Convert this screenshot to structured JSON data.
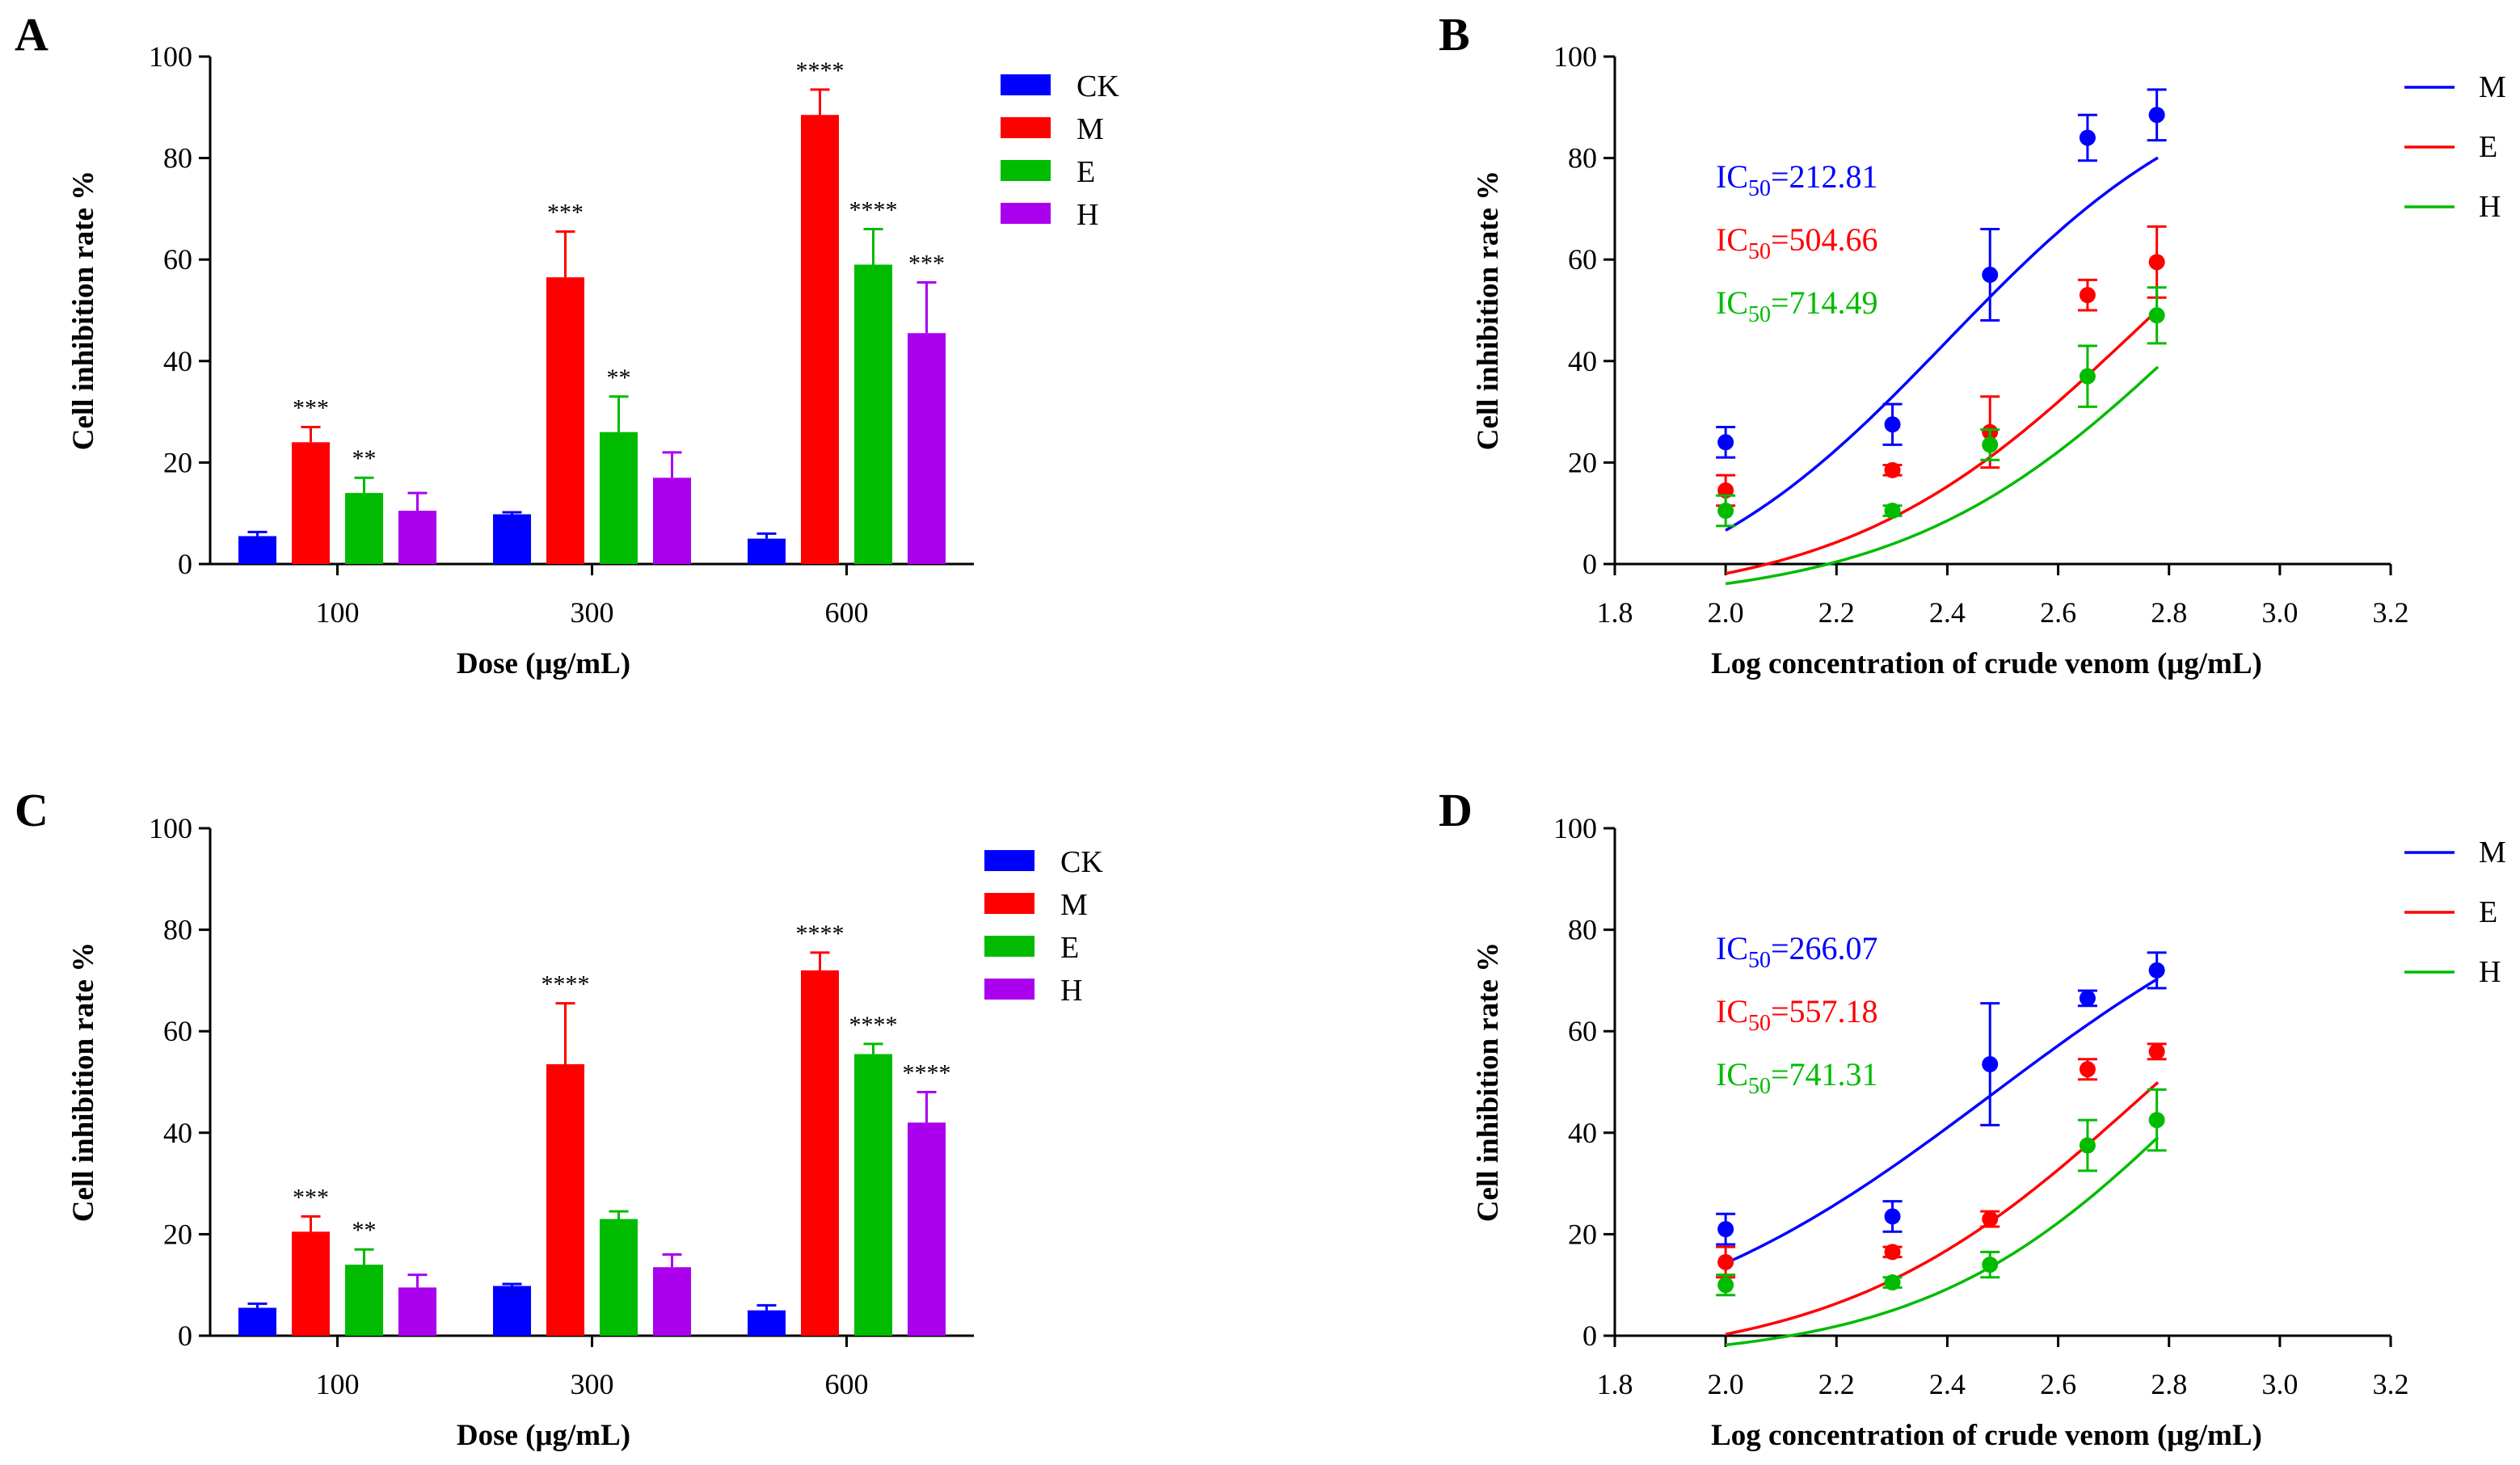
{
  "chart_data": [
    {
      "panel": "A",
      "type": "bar",
      "categories": [
        "100",
        "300",
        "600"
      ],
      "xlabel": "Dose (μg/mL)",
      "ylabel": "Cell inhibition rate %",
      "ylim": [
        0,
        100
      ],
      "yticks": [
        "0",
        "20",
        "40",
        "60",
        "80",
        "100"
      ],
      "legend_position": "top-right",
      "series": [
        {
          "name": "CK",
          "color": "#0000ff",
          "values": [
            5.5,
            9.8,
            5.0
          ],
          "errors": [
            0.8,
            0.4,
            1.0
          ],
          "sig": [
            "",
            "",
            ""
          ]
        },
        {
          "name": "M",
          "color": "#ff0000",
          "values": [
            24.0,
            56.5,
            88.5
          ],
          "errors": [
            3.0,
            9.0,
            5.0
          ],
          "sig": [
            "***",
            "***",
            "****"
          ]
        },
        {
          "name": "E",
          "color": "#00bb00",
          "values": [
            14.0,
            26.0,
            59.0
          ],
          "errors": [
            3.0,
            7.0,
            7.0
          ],
          "sig": [
            "**",
            "**",
            "****"
          ]
        },
        {
          "name": "H",
          "color": "#aa00ee",
          "values": [
            10.5,
            17.0,
            45.5
          ],
          "errors": [
            3.5,
            5.0,
            10.0
          ],
          "sig": [
            "",
            "",
            "***"
          ]
        }
      ]
    },
    {
      "panel": "B",
      "type": "scatter",
      "xlabel": "Log concentration of crude venom (μg/mL)",
      "ylabel": "Cell inhibition rate %",
      "xlim": [
        1.8,
        3.2
      ],
      "ylim": [
        0,
        100
      ],
      "xticks": [
        "1.8",
        "2.0",
        "2.2",
        "2.4",
        "2.6",
        "2.8",
        "3.0",
        "3.2"
      ],
      "yticks": [
        "0",
        "20",
        "40",
        "60",
        "80",
        "100"
      ],
      "legend_position": "top-right",
      "series": [
        {
          "name": "M",
          "color": "#0000ff",
          "ic_prefix": "IC",
          "ic_sub": "50",
          "ic_value": "=212.81",
          "x": [
            2.0,
            2.301,
            2.477,
            2.653,
            2.778
          ],
          "y": [
            24.0,
            27.5,
            57.0,
            84.0,
            88.5
          ],
          "errors": [
            3.0,
            4.0,
            9.0,
            4.5,
            5.0
          ],
          "fit": {
            "bottom": -12,
            "top": 100,
            "log_ec50": 2.4,
            "hill": 1.75
          }
        },
        {
          "name": "E",
          "color": "#ff0000",
          "ic_prefix": "IC",
          "ic_sub": "50",
          "ic_value": "=504.66",
          "x": [
            2.0,
            2.301,
            2.477,
            2.653,
            2.778
          ],
          "y": [
            14.5,
            18.5,
            26.0,
            53.0,
            59.5
          ],
          "errors": [
            3.0,
            1.0,
            7.0,
            3.0,
            7.0
          ],
          "fit": {
            "bottom": -8,
            "top": 100,
            "log_ec50": 2.74,
            "hill": 1.65
          }
        },
        {
          "name": "H",
          "color": "#00bb00",
          "ic_prefix": "IC",
          "ic_sub": "50",
          "ic_value": "=714.49",
          "x": [
            2.0,
            2.301,
            2.477,
            2.653,
            2.778
          ],
          "y": [
            10.5,
            10.5,
            23.5,
            37.0,
            49.0
          ],
          "errors": [
            3.0,
            1.0,
            3.0,
            6.0,
            5.5
          ],
          "fit": {
            "bottom": -8,
            "top": 100,
            "log_ec50": 2.85,
            "hill": 1.65
          }
        }
      ]
    },
    {
      "panel": "C",
      "type": "bar",
      "categories": [
        "100",
        "300",
        "600"
      ],
      "xlabel": "Dose (μg/mL)",
      "ylabel": "Cell inhibition rate %",
      "ylim": [
        0,
        100
      ],
      "yticks": [
        "0",
        "20",
        "40",
        "60",
        "80",
        "100"
      ],
      "legend_position": "top-right",
      "series": [
        {
          "name": "CK",
          "color": "#0000ff",
          "values": [
            5.5,
            9.8,
            5.0
          ],
          "errors": [
            0.8,
            0.4,
            1.0
          ],
          "sig": [
            "",
            "",
            ""
          ]
        },
        {
          "name": "M",
          "color": "#ff0000",
          "values": [
            20.5,
            53.5,
            72.0
          ],
          "errors": [
            3.0,
            12.0,
            3.5
          ],
          "sig": [
            "***",
            "****",
            "****"
          ]
        },
        {
          "name": "E",
          "color": "#00bb00",
          "values": [
            14.0,
            23.0,
            55.5
          ],
          "errors": [
            3.0,
            1.5,
            2.0
          ],
          "sig": [
            "**",
            "",
            "****"
          ]
        },
        {
          "name": "H",
          "color": "#aa00ee",
          "values": [
            9.5,
            13.5,
            42.0
          ],
          "errors": [
            2.5,
            2.5,
            6.0
          ],
          "sig": [
            "",
            "",
            "****"
          ]
        }
      ]
    },
    {
      "panel": "D",
      "type": "scatter",
      "xlabel": "Log concentration of crude venom (μg/mL)",
      "ylabel": "Cell inhibition rate %",
      "xlim": [
        1.8,
        3.2
      ],
      "ylim": [
        0,
        100
      ],
      "xticks": [
        "1.8",
        "2.0",
        "2.2",
        "2.4",
        "2.6",
        "2.8",
        "3.0",
        "3.2"
      ],
      "yticks": [
        "0",
        "20",
        "40",
        "60",
        "80",
        "100"
      ],
      "legend_position": "top-right",
      "series": [
        {
          "name": "M",
          "color": "#0000ff",
          "ic_prefix": "IC",
          "ic_sub": "50",
          "ic_value": "=266.07",
          "x": [
            2.0,
            2.301,
            2.477,
            2.653,
            2.778
          ],
          "y": [
            21.0,
            23.5,
            53.5,
            66.5,
            72.0
          ],
          "errors": [
            3.0,
            3.0,
            12.0,
            1.5,
            3.5
          ],
          "fit": {
            "bottom": -5,
            "top": 100,
            "log_ec50": 2.48,
            "hill": 1.35
          }
        },
        {
          "name": "E",
          "color": "#ff0000",
          "ic_prefix": "IC",
          "ic_sub": "50",
          "ic_value": "=557.18",
          "x": [
            2.0,
            2.301,
            2.477,
            2.653,
            2.778
          ],
          "y": [
            14.5,
            16.5,
            23.0,
            52.5,
            56.0
          ],
          "errors": [
            3.0,
            1.0,
            1.5,
            2.0,
            1.5
          ],
          "fit": {
            "bottom": -6,
            "top": 100,
            "log_ec50": 2.75,
            "hill": 1.6
          }
        },
        {
          "name": "H",
          "color": "#00bb00",
          "ic_prefix": "IC",
          "ic_sub": "50",
          "ic_value": "=741.31",
          "x": [
            2.0,
            2.301,
            2.477,
            2.653,
            2.778
          ],
          "y": [
            10.0,
            10.5,
            14.0,
            37.5,
            42.5
          ],
          "errors": [
            2.0,
            1.0,
            2.5,
            5.0,
            6.0
          ],
          "fit": {
            "bottom": -5,
            "top": 100,
            "log_ec50": 2.86,
            "hill": 1.75
          }
        }
      ]
    }
  ]
}
